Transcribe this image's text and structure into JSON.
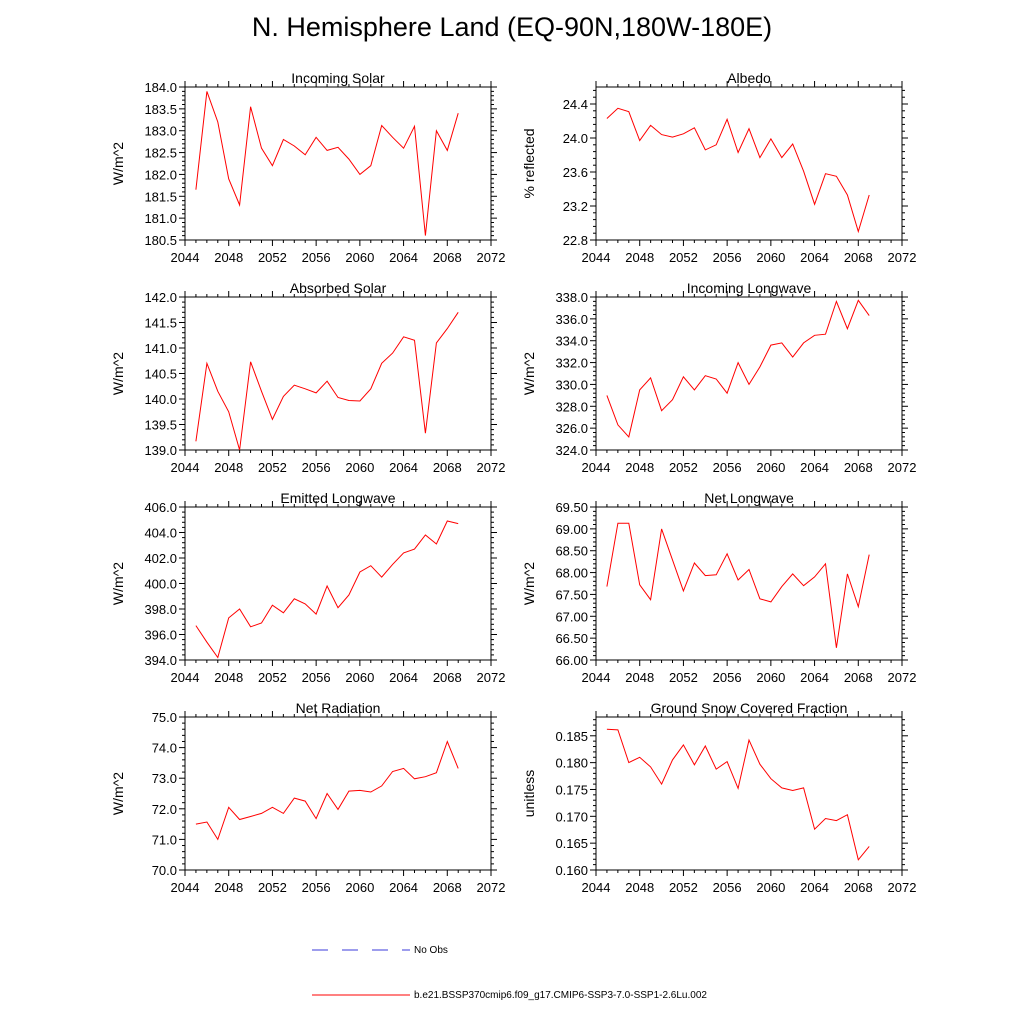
{
  "title": "N. Hemisphere Land (EQ-90N,180W-180E)",
  "legend": [
    {
      "label": "No Obs",
      "color": "#3b3bdb",
      "style": "dashed"
    },
    {
      "label": "b.e21.BSSP370cmip6.f09_g17.CMIP6-SSP3-7.0-SSP1-2.6Lu.002",
      "color": "#ff0000",
      "style": "solid"
    }
  ],
  "chart_data": [
    {
      "type": "line",
      "title": "Incoming Solar",
      "ylabel": "W/m^2",
      "xlim": [
        2044,
        2072
      ],
      "xticks": [
        "2044",
        "2048",
        "2052",
        "2056",
        "2060",
        "2064",
        "2068",
        "2072"
      ],
      "ylim": [
        180.5,
        184.0
      ],
      "yticks": [
        "180.5",
        "181.0",
        "181.5",
        "182.0",
        "182.5",
        "183.0",
        "183.5",
        "184.0"
      ],
      "x": [
        2045,
        2046,
        2047,
        2048,
        2049,
        2050,
        2051,
        2052,
        2053,
        2054,
        2055,
        2056,
        2057,
        2058,
        2059,
        2060,
        2061,
        2062,
        2063,
        2064,
        2065,
        2066,
        2067,
        2068,
        2069
      ],
      "series": [
        {
          "values": [
            181.65,
            183.9,
            183.2,
            181.9,
            181.3,
            183.55,
            182.6,
            182.2,
            182.8,
            182.65,
            182.45,
            182.85,
            182.55,
            182.62,
            182.35,
            182.0,
            182.2,
            183.12,
            182.85,
            182.6,
            183.1,
            180.6,
            183.0,
            182.55,
            183.4
          ],
          "color": "#ff0000"
        }
      ]
    },
    {
      "type": "line",
      "title": "Albedo",
      "ylabel": "% reflected",
      "xlim": [
        2044,
        2072
      ],
      "xticks": [
        "2044",
        "2048",
        "2052",
        "2056",
        "2060",
        "2064",
        "2068",
        "2072"
      ],
      "ylim": [
        22.8,
        24.6
      ],
      "yticks": [
        "22.8",
        "23.2",
        "23.6",
        "24.0",
        "24.4"
      ],
      "x": [
        2045,
        2046,
        2047,
        2048,
        2049,
        2050,
        2051,
        2052,
        2053,
        2054,
        2055,
        2056,
        2057,
        2058,
        2059,
        2060,
        2061,
        2062,
        2063,
        2064,
        2065,
        2066,
        2067,
        2068,
        2069
      ],
      "series": [
        {
          "values": [
            24.23,
            24.35,
            24.31,
            23.97,
            24.15,
            24.04,
            24.01,
            24.05,
            24.12,
            23.86,
            23.92,
            24.22,
            23.83,
            24.11,
            23.77,
            23.99,
            23.77,
            23.93,
            23.61,
            23.22,
            23.58,
            23.55,
            23.33,
            22.9,
            23.33
          ],
          "color": "#ff0000"
        }
      ]
    },
    {
      "type": "line",
      "title": "Absorbed Solar",
      "ylabel": "W/m^2",
      "xlim": [
        2044,
        2072
      ],
      "xticks": [
        "2044",
        "2048",
        "2052",
        "2056",
        "2060",
        "2064",
        "2068",
        "2072"
      ],
      "ylim": [
        139.0,
        142.0
      ],
      "yticks": [
        "139.0",
        "139.5",
        "140.0",
        "140.5",
        "141.0",
        "141.5",
        "142.0"
      ],
      "x": [
        2045,
        2046,
        2047,
        2048,
        2049,
        2050,
        2051,
        2052,
        2053,
        2054,
        2055,
        2056,
        2057,
        2058,
        2059,
        2060,
        2061,
        2062,
        2063,
        2064,
        2065,
        2066,
        2067,
        2068,
        2069
      ],
      "series": [
        {
          "values": [
            139.17,
            140.7,
            140.15,
            139.75,
            139.0,
            140.73,
            140.15,
            139.6,
            140.05,
            140.27,
            140.2,
            140.12,
            140.35,
            140.03,
            139.97,
            139.96,
            140.2,
            140.7,
            140.9,
            141.22,
            141.15,
            139.33,
            141.1,
            141.38,
            141.7
          ],
          "color": "#ff0000"
        }
      ]
    },
    {
      "type": "line",
      "title": "Incoming Longwave",
      "ylabel": "W/m^2",
      "xlim": [
        2044,
        2072
      ],
      "xticks": [
        "2044",
        "2048",
        "2052",
        "2056",
        "2060",
        "2064",
        "2068",
        "2072"
      ],
      "ylim": [
        324.0,
        338.0
      ],
      "yticks": [
        "324.0",
        "326.0",
        "328.0",
        "330.0",
        "332.0",
        "334.0",
        "336.0",
        "338.0"
      ],
      "x": [
        2045,
        2046,
        2047,
        2048,
        2049,
        2050,
        2051,
        2052,
        2053,
        2054,
        2055,
        2056,
        2057,
        2058,
        2059,
        2060,
        2061,
        2062,
        2063,
        2064,
        2065,
        2066,
        2067,
        2068,
        2069
      ],
      "series": [
        {
          "values": [
            329.0,
            326.3,
            325.2,
            329.5,
            330.6,
            327.6,
            328.6,
            330.7,
            329.5,
            330.8,
            330.5,
            329.2,
            332.0,
            330.0,
            331.6,
            333.6,
            333.8,
            332.5,
            333.8,
            334.5,
            334.6,
            337.6,
            335.1,
            337.7,
            336.3
          ],
          "color": "#ff0000"
        }
      ]
    },
    {
      "type": "line",
      "title": "Emitted Longwave",
      "ylabel": "W/m^2",
      "xlim": [
        2044,
        2072
      ],
      "xticks": [
        "2044",
        "2048",
        "2052",
        "2056",
        "2060",
        "2064",
        "2068",
        "2072"
      ],
      "ylim": [
        394.0,
        406.0
      ],
      "yticks": [
        "394.0",
        "396.0",
        "398.0",
        "400.0",
        "402.0",
        "404.0",
        "406.0"
      ],
      "x": [
        2045,
        2046,
        2047,
        2048,
        2049,
        2050,
        2051,
        2052,
        2053,
        2054,
        2055,
        2056,
        2057,
        2058,
        2059,
        2060,
        2061,
        2062,
        2063,
        2064,
        2065,
        2066,
        2067,
        2068,
        2069
      ],
      "series": [
        {
          "values": [
            396.7,
            395.4,
            394.2,
            397.3,
            398.0,
            396.6,
            396.9,
            398.3,
            397.7,
            398.8,
            398.4,
            397.6,
            399.8,
            398.1,
            399.1,
            400.9,
            401.4,
            400.5,
            401.5,
            402.4,
            402.7,
            403.8,
            403.1,
            404.9,
            404.7
          ],
          "color": "#ff0000"
        }
      ]
    },
    {
      "type": "line",
      "title": "Net Longwave",
      "ylabel": "W/m^2",
      "xlim": [
        2044,
        2072
      ],
      "xticks": [
        "2044",
        "2048",
        "2052",
        "2056",
        "2060",
        "2064",
        "2068",
        "2072"
      ],
      "ylim": [
        66.0,
        69.5
      ],
      "yticks": [
        "66.00",
        "66.50",
        "67.00",
        "67.50",
        "68.00",
        "68.50",
        "69.00",
        "69.50"
      ],
      "x": [
        2045,
        2046,
        2047,
        2048,
        2049,
        2050,
        2051,
        2052,
        2053,
        2054,
        2055,
        2056,
        2057,
        2058,
        2059,
        2060,
        2061,
        2062,
        2063,
        2064,
        2065,
        2066,
        2067,
        2068,
        2069
      ],
      "series": [
        {
          "values": [
            67.68,
            69.13,
            69.13,
            67.72,
            67.38,
            69.0,
            68.29,
            67.58,
            68.22,
            67.93,
            67.95,
            68.43,
            67.83,
            68.07,
            67.4,
            67.33,
            67.68,
            67.97,
            67.7,
            67.9,
            68.2,
            66.28,
            67.97,
            67.22,
            68.41
          ],
          "color": "#ff0000"
        }
      ]
    },
    {
      "type": "line",
      "title": "Net Radiation",
      "ylabel": "W/m^2",
      "xlim": [
        2044,
        2072
      ],
      "xticks": [
        "2044",
        "2048",
        "2052",
        "2056",
        "2060",
        "2064",
        "2068",
        "2072"
      ],
      "ylim": [
        70.0,
        75.0
      ],
      "yticks": [
        "70.0",
        "71.0",
        "72.0",
        "73.0",
        "74.0",
        "75.0"
      ],
      "x": [
        2045,
        2046,
        2047,
        2048,
        2049,
        2050,
        2051,
        2052,
        2053,
        2054,
        2055,
        2056,
        2057,
        2058,
        2059,
        2060,
        2061,
        2062,
        2063,
        2064,
        2065,
        2066,
        2067,
        2068,
        2069
      ],
      "series": [
        {
          "values": [
            71.5,
            71.57,
            71.0,
            72.05,
            71.65,
            71.75,
            71.85,
            72.05,
            71.85,
            72.35,
            72.25,
            71.68,
            72.5,
            71.98,
            72.58,
            72.6,
            72.55,
            72.75,
            73.22,
            73.32,
            72.98,
            73.05,
            73.18,
            74.2,
            73.32
          ],
          "color": "#ff0000"
        }
      ]
    },
    {
      "type": "line",
      "title": "Ground Snow Covered Fraction",
      "ylabel": "unitless",
      "xlim": [
        2044,
        2072
      ],
      "xticks": [
        "2044",
        "2048",
        "2052",
        "2056",
        "2060",
        "2064",
        "2068",
        "2072"
      ],
      "ylim": [
        0.16,
        0.1885
      ],
      "yticks": [
        "0.160",
        "0.165",
        "0.170",
        "0.175",
        "0.180",
        "0.185"
      ],
      "x": [
        2045,
        2046,
        2047,
        2048,
        2049,
        2050,
        2051,
        2052,
        2053,
        2054,
        2055,
        2056,
        2057,
        2058,
        2059,
        2060,
        2061,
        2062,
        2063,
        2064,
        2065,
        2066,
        2067,
        2068,
        2069
      ],
      "series": [
        {
          "values": [
            0.1862,
            0.1861,
            0.18,
            0.181,
            0.1792,
            0.176,
            0.1805,
            0.1833,
            0.1796,
            0.1831,
            0.1788,
            0.1802,
            0.1752,
            0.1842,
            0.1797,
            0.177,
            0.1753,
            0.1748,
            0.1753,
            0.1676,
            0.1696,
            0.1692,
            0.1703,
            0.1619,
            0.1644
          ],
          "color": "#ff0000"
        }
      ]
    }
  ]
}
